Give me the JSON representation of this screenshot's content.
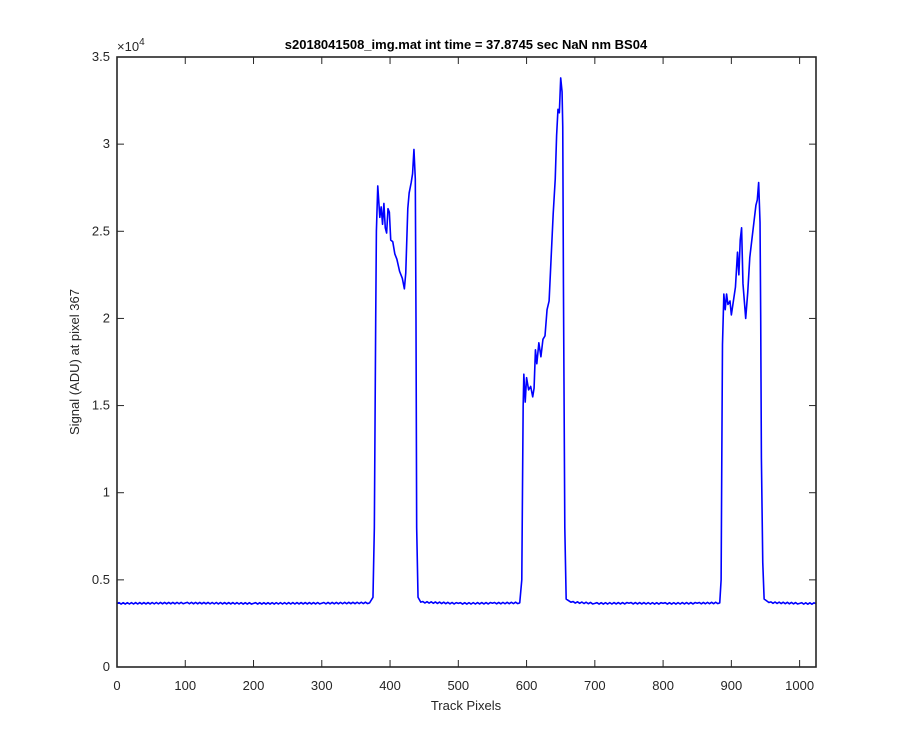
{
  "chart_data": {
    "type": "line",
    "title": "s2018041508_img.mat int time = 37.8745 sec  NaN nm BS04",
    "xlabel": "Track Pixels",
    "ylabel": "Signal (ADU) at pixel 367",
    "xlim": [
      0,
      1024
    ],
    "ylim": [
      0,
      35000
    ],
    "x_ticks": [
      0,
      100,
      200,
      300,
      400,
      500,
      600,
      700,
      800,
      900,
      1000
    ],
    "y_ticks": [
      0,
      0.5,
      1,
      1.5,
      2,
      2.5,
      3,
      3.5
    ],
    "y_exponent_label": "×10",
    "y_exponent_power": "4",
    "grid": false,
    "series": [
      {
        "color": "#0000ff",
        "points": [
          [
            0,
            3650
          ],
          [
            100,
            3670
          ],
          [
            200,
            3650
          ],
          [
            300,
            3660
          ],
          [
            370,
            3680
          ],
          [
            375,
            4000
          ],
          [
            377,
            8000
          ],
          [
            379,
            20000
          ],
          [
            380,
            25000
          ],
          [
            382,
            27600
          ],
          [
            385,
            25800
          ],
          [
            387,
            26400
          ],
          [
            389,
            25400
          ],
          [
            391,
            26600
          ],
          [
            393,
            25200
          ],
          [
            395,
            24900
          ],
          [
            397,
            26300
          ],
          [
            399,
            26100
          ],
          [
            401,
            24500
          ],
          [
            404,
            24400
          ],
          [
            407,
            23700
          ],
          [
            410,
            23400
          ],
          [
            414,
            22700
          ],
          [
            418,
            22300
          ],
          [
            421,
            21700
          ],
          [
            423,
            22600
          ],
          [
            426,
            26300
          ],
          [
            428,
            27200
          ],
          [
            431,
            27800
          ],
          [
            433,
            28300
          ],
          [
            435,
            29700
          ],
          [
            437,
            28000
          ],
          [
            438,
            20000
          ],
          [
            439,
            8000
          ],
          [
            441,
            4000
          ],
          [
            445,
            3720
          ],
          [
            500,
            3650
          ],
          [
            550,
            3660
          ],
          [
            590,
            3680
          ],
          [
            593,
            5000
          ],
          [
            594,
            10000
          ],
          [
            595,
            15000
          ],
          [
            596,
            16800
          ],
          [
            598,
            15200
          ],
          [
            600,
            16600
          ],
          [
            603,
            15900
          ],
          [
            606,
            16100
          ],
          [
            609,
            15500
          ],
          [
            611,
            16000
          ],
          [
            613,
            18200
          ],
          [
            615,
            17400
          ],
          [
            618,
            18600
          ],
          [
            621,
            17800
          ],
          [
            624,
            18800
          ],
          [
            627,
            19000
          ],
          [
            630,
            20500
          ],
          [
            633,
            21000
          ],
          [
            636,
            23500
          ],
          [
            639,
            26000
          ],
          [
            642,
            28000
          ],
          [
            644,
            30500
          ],
          [
            646,
            32000
          ],
          [
            648,
            31800
          ],
          [
            650,
            33800
          ],
          [
            652,
            33000
          ],
          [
            653,
            31000
          ],
          [
            654,
            22000
          ],
          [
            656,
            8000
          ],
          [
            658,
            3900
          ],
          [
            665,
            3720
          ],
          [
            700,
            3650
          ],
          [
            750,
            3660
          ],
          [
            800,
            3650
          ],
          [
            850,
            3660
          ],
          [
            883,
            3680
          ],
          [
            885,
            5000
          ],
          [
            886,
            12000
          ],
          [
            887,
            18500
          ],
          [
            889,
            21400
          ],
          [
            891,
            20500
          ],
          [
            893,
            21400
          ],
          [
            895,
            20800
          ],
          [
            898,
            21000
          ],
          [
            900,
            20200
          ],
          [
            903,
            21000
          ],
          [
            906,
            21800
          ],
          [
            909,
            23800
          ],
          [
            911,
            22500
          ],
          [
            913,
            24500
          ],
          [
            915,
            25200
          ],
          [
            917,
            22000
          ],
          [
            919,
            21000
          ],
          [
            921,
            20000
          ],
          [
            924,
            21500
          ],
          [
            927,
            23500
          ],
          [
            930,
            24500
          ],
          [
            933,
            25500
          ],
          [
            936,
            26500
          ],
          [
            938,
            26800
          ],
          [
            940,
            27800
          ],
          [
            942,
            25500
          ],
          [
            943,
            20000
          ],
          [
            944,
            12000
          ],
          [
            946,
            6000
          ],
          [
            948,
            3900
          ],
          [
            955,
            3700
          ],
          [
            1000,
            3650
          ],
          [
            1024,
            3640
          ]
        ]
      }
    ]
  }
}
